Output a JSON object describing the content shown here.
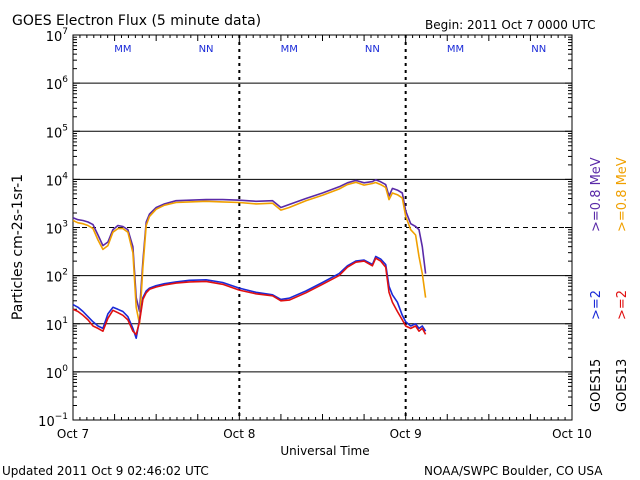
{
  "header": {
    "title": "GOES Electron Flux (5 minute data)",
    "begin": "Begin: 2011 Oct 7 0000 UTC"
  },
  "footer": {
    "updated": "Updated 2011 Oct  9 02:46:02 UTC",
    "credit": "NOAA/SWPC Boulder, CO USA"
  },
  "colors": {
    "goes15_08": "#5a2aa8",
    "goes13_08": "#f0a000",
    "goes15_2": "#1a2ad8",
    "goes13_2": "#e01010",
    "threshold": "#000000"
  },
  "legend": [
    {
      "sat": "GOES15",
      "label": ">=0.8 MeV",
      "color": "#5a2aa8"
    },
    {
      "sat": "GOES13",
      "label": ">=0.8 MeV",
      "color": "#f0a000"
    },
    {
      "sat": "GOES15",
      "label": ">=2",
      "color": "#1a2ad8"
    },
    {
      "sat": "GOES13",
      "label": ">=2",
      "color": "#e01010"
    }
  ],
  "chart_data": {
    "type": "line",
    "title": "GOES Electron Flux (5 minute data)",
    "xlabel": "Universal Time",
    "ylabel": "Particles cm-2s-1sr-1",
    "yscale": "log",
    "ylim_exp": [
      -1,
      7
    ],
    "xlim_days": [
      0,
      3
    ],
    "x_ticks": [
      {
        "day": 0,
        "label": "Oct 7"
      },
      {
        "day": 1,
        "label": "Oct 8"
      },
      {
        "day": 2,
        "label": "Oct 9"
      },
      {
        "day": 3,
        "label": "Oct 10"
      }
    ],
    "y_tick_exps": [
      -1,
      0,
      1,
      2,
      3,
      4,
      5,
      6,
      7
    ],
    "threshold_exp": 3,
    "mn_markers": [
      {
        "day": 0.3,
        "text": "MM",
        "color": "#1a2ad8"
      },
      {
        "day": 0.8,
        "text": "NN",
        "color": "#1a2ad8"
      },
      {
        "day": 1.3,
        "text": "MM",
        "color": "#1a2ad8"
      },
      {
        "day": 1.8,
        "text": "NN",
        "color": "#1a2ad8"
      },
      {
        "day": 2.3,
        "text": "MM",
        "color": "#1a2ad8"
      },
      {
        "day": 2.8,
        "text": "NN",
        "color": "#1a2ad8"
      }
    ],
    "series": [
      {
        "name": "GOES15 >=0.8 MeV",
        "color": "#5a2aa8",
        "x": [
          0.0,
          0.03,
          0.06,
          0.09,
          0.12,
          0.15,
          0.18,
          0.21,
          0.24,
          0.27,
          0.3,
          0.33,
          0.36,
          0.38,
          0.4,
          0.42,
          0.44,
          0.46,
          0.5,
          0.55,
          0.62,
          0.7,
          0.8,
          0.9,
          1.0,
          1.1,
          1.2,
          1.25,
          1.3,
          1.4,
          1.5,
          1.6,
          1.65,
          1.7,
          1.75,
          1.8,
          1.82,
          1.85,
          1.88,
          1.9,
          1.92,
          1.95,
          1.98,
          2.0,
          2.03,
          2.06,
          2.08,
          2.1,
          2.12
        ],
        "y": [
          1600,
          1450,
          1400,
          1300,
          1150,
          700,
          420,
          500,
          900,
          1100,
          1050,
          900,
          400,
          35,
          18,
          200,
          1300,
          1900,
          2600,
          3100,
          3600,
          3700,
          3800,
          3800,
          3700,
          3500,
          3600,
          2600,
          3000,
          4000,
          5200,
          7000,
          8500,
          9500,
          8500,
          9000,
          9800,
          8900,
          7800,
          4500,
          6500,
          6000,
          5200,
          2200,
          1200,
          1050,
          900,
          400,
          110
        ]
      },
      {
        "name": "GOES13 >=0.8 MeV",
        "color": "#f0a000",
        "x": [
          0.0,
          0.03,
          0.06,
          0.09,
          0.12,
          0.15,
          0.18,
          0.21,
          0.24,
          0.27,
          0.3,
          0.33,
          0.36,
          0.38,
          0.4,
          0.42,
          0.44,
          0.46,
          0.5,
          0.55,
          0.62,
          0.7,
          0.8,
          0.9,
          1.0,
          1.1,
          1.2,
          1.25,
          1.3,
          1.4,
          1.5,
          1.6,
          1.65,
          1.7,
          1.75,
          1.8,
          1.82,
          1.85,
          1.88,
          1.9,
          1.92,
          1.95,
          1.98,
          2.0,
          2.03,
          2.06,
          2.08,
          2.1,
          2.12
        ],
        "y": [
          1400,
          1250,
          1200,
          1100,
          950,
          550,
          350,
          420,
          800,
          950,
          950,
          800,
          300,
          22,
          10,
          150,
          1100,
          1700,
          2400,
          2900,
          3300,
          3400,
          3500,
          3400,
          3300,
          3100,
          3200,
          2300,
          2600,
          3600,
          4700,
          6300,
          7800,
          8700,
          7600,
          8200,
          8600,
          7800,
          6800,
          3800,
          5200,
          4800,
          4100,
          1700,
          900,
          700,
          250,
          110,
          35
        ]
      },
      {
        "name": "GOES15 >=2",
        "color": "#1a2ad8",
        "x": [
          0.0,
          0.03,
          0.06,
          0.09,
          0.12,
          0.15,
          0.18,
          0.21,
          0.24,
          0.27,
          0.3,
          0.33,
          0.36,
          0.38,
          0.4,
          0.42,
          0.44,
          0.46,
          0.5,
          0.55,
          0.62,
          0.7,
          0.8,
          0.9,
          1.0,
          1.1,
          1.2,
          1.25,
          1.3,
          1.4,
          1.5,
          1.6,
          1.65,
          1.7,
          1.75,
          1.8,
          1.82,
          1.85,
          1.88,
          1.9,
          1.92,
          1.95,
          1.98,
          2.0,
          2.03,
          2.06,
          2.08,
          2.1,
          2.12
        ],
        "y": [
          25,
          22,
          18,
          14,
          11,
          9,
          8,
          16,
          22,
          20,
          18,
          14,
          8,
          5,
          12,
          35,
          48,
          55,
          62,
          68,
          74,
          80,
          82,
          72,
          55,
          45,
          40,
          32,
          34,
          48,
          72,
          110,
          160,
          200,
          210,
          170,
          250,
          220,
          170,
          60,
          40,
          28,
          15,
          11,
          9,
          10,
          8,
          9,
          7
        ]
      },
      {
        "name": "GOES13 >=2",
        "color": "#e01010",
        "x": [
          0.0,
          0.03,
          0.06,
          0.09,
          0.12,
          0.15,
          0.18,
          0.21,
          0.24,
          0.27,
          0.3,
          0.33,
          0.36,
          0.38,
          0.4,
          0.42,
          0.44,
          0.46,
          0.5,
          0.55,
          0.62,
          0.7,
          0.8,
          0.9,
          1.0,
          1.1,
          1.2,
          1.25,
          1.3,
          1.4,
          1.5,
          1.6,
          1.65,
          1.7,
          1.75,
          1.8,
          1.82,
          1.85,
          1.88,
          1.9,
          1.92,
          1.95,
          1.98,
          2.0,
          2.03,
          2.06,
          2.08,
          2.1,
          2.12
        ],
        "y": [
          20,
          18,
          15,
          12,
          9,
          8,
          7,
          13,
          19,
          17,
          15,
          12,
          7,
          6,
          11,
          32,
          44,
          52,
          58,
          64,
          70,
          74,
          76,
          66,
          50,
          42,
          38,
          30,
          31,
          44,
          66,
          100,
          150,
          190,
          200,
          160,
          230,
          200,
          150,
          45,
          28,
          18,
          12,
          9,
          8,
          9,
          7,
          8,
          6
        ]
      }
    ]
  }
}
